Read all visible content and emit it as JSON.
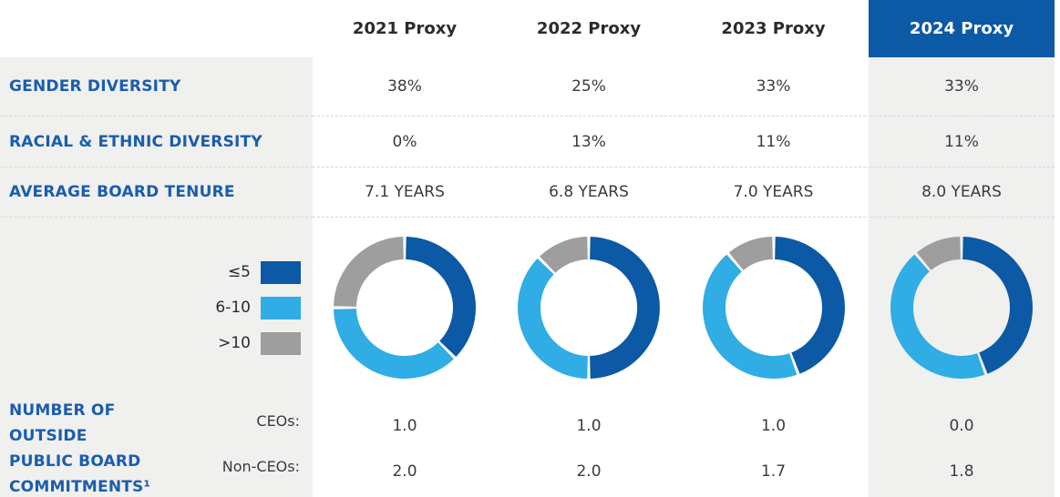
{
  "table": {
    "columns": [
      "2021 Proxy",
      "2022 Proxy",
      "2023 Proxy",
      "2024 Proxy"
    ],
    "rows": [
      {
        "label": "GENDER DIVERSITY",
        "values": [
          "38%",
          "25%",
          "33%",
          "33%"
        ]
      },
      {
        "label": "RACIAL & ETHNIC DIVERSITY",
        "values": [
          "0%",
          "13%",
          "11%",
          "11%"
        ]
      },
      {
        "label": "AVERAGE BOARD TENURE",
        "values": [
          "7.1 YEARS",
          "6.8 YEARS",
          "7.0 YEARS",
          "8.0 YEARS"
        ]
      }
    ],
    "commitments": {
      "label": "NUMBER OF OUTSIDE PUBLIC BOARD COMMITMENTS¹",
      "label_lines": [
        "NUMBER OF OUTSIDE",
        "PUBLIC BOARD",
        "COMMITMENTS¹"
      ],
      "sub_rows": [
        {
          "label": "CEOs:",
          "values": [
            "1.0",
            "1.0",
            "1.0",
            "0.0"
          ]
        },
        {
          "label": "Non-CEOs:",
          "values": [
            "2.0",
            "2.0",
            "1.7",
            "1.8"
          ]
        }
      ]
    }
  },
  "chart_data": {
    "type": "pie",
    "variant": "donut",
    "legend_position": "left",
    "legend": [
      {
        "label": "≤5",
        "color": "#0c59a5"
      },
      {
        "label": "6-10",
        "color": "#2fade4"
      },
      {
        "label": ">10",
        "color": "#9e9e9e"
      }
    ],
    "charts": [
      {
        "column": "2021 Proxy",
        "values": [
          37.5,
          37.5,
          25.0
        ]
      },
      {
        "column": "2022 Proxy",
        "values": [
          50.0,
          37.5,
          12.5
        ]
      },
      {
        "column": "2023 Proxy",
        "values": [
          44.4,
          44.4,
          11.2
        ]
      },
      {
        "column": "2024 Proxy",
        "values": [
          44.4,
          44.4,
          11.2
        ]
      }
    ]
  },
  "colors": {
    "header_blue": "#0c59a5",
    "label_blue": "#1a5dad",
    "tenure_le5": "#0c59a5",
    "tenure_6_10": "#2fade4",
    "tenure_gt10": "#9e9e9e",
    "panel_gray": "#f0f0ef",
    "value_text": "#3b3b3b"
  }
}
